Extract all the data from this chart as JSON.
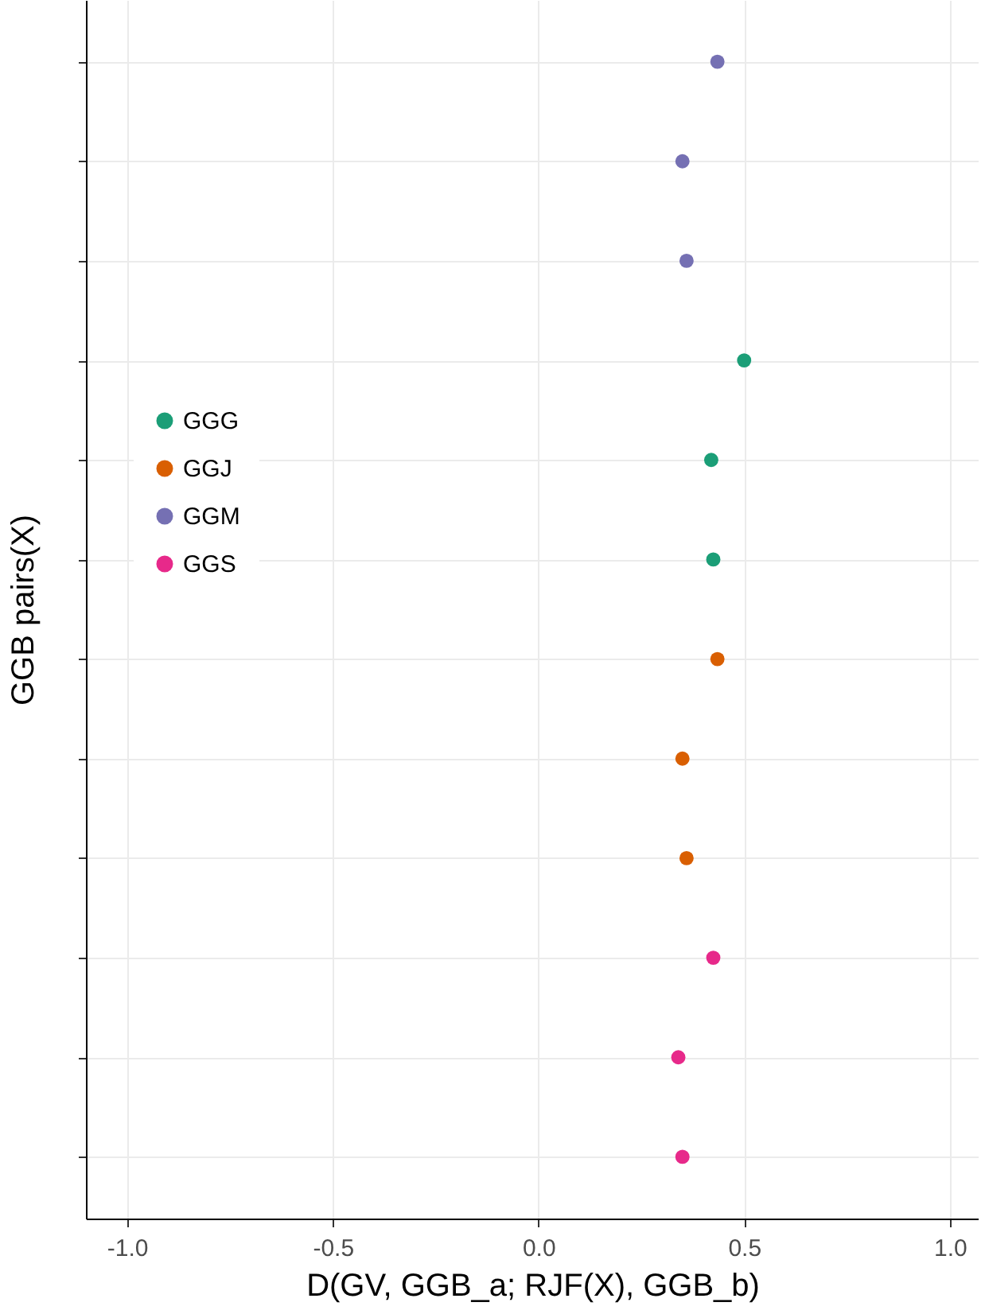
{
  "chart_data": {
    "type": "scatter",
    "orientation": "horizontal",
    "xlabel": "D(GV, GGB_a; RJF(X), GGB_b)",
    "ylabel": "GGB pairs(X)",
    "categories": [
      null,
      null,
      null,
      null,
      null,
      null,
      null,
      null,
      null,
      null,
      null,
      null
    ],
    "series": [
      {
        "name": "GGG",
        "color": "#1b9e77",
        "values": [
          null,
          null,
          null,
          0.5,
          0.42,
          0.425,
          null,
          null,
          null,
          null,
          null,
          null
        ]
      },
      {
        "name": "GGJ",
        "color": "#d95f02",
        "values": [
          null,
          null,
          null,
          null,
          null,
          null,
          0.435,
          0.35,
          0.36,
          null,
          null,
          null
        ]
      },
      {
        "name": "GGM",
        "color": "#7570b3",
        "values": [
          0.435,
          0.35,
          0.36,
          null,
          null,
          null,
          null,
          null,
          null,
          null,
          null,
          null
        ]
      },
      {
        "name": "GGS",
        "color": "#e7298a",
        "values": [
          null,
          null,
          null,
          null,
          null,
          null,
          null,
          null,
          null,
          0.425,
          0.34,
          0.35
        ]
      }
    ],
    "xlim": [
      -1.1,
      1.07
    ],
    "xticks": [
      {
        "value": -1,
        "label": "-1.0"
      },
      -0.5,
      {
        "value": 0,
        "label": "0.0"
      },
      0.5,
      {
        "value": 1,
        "label": "1.0"
      }
    ],
    "grid": true,
    "legend": "left",
    "marker": "circle",
    "tick_labels": "x"
  }
}
